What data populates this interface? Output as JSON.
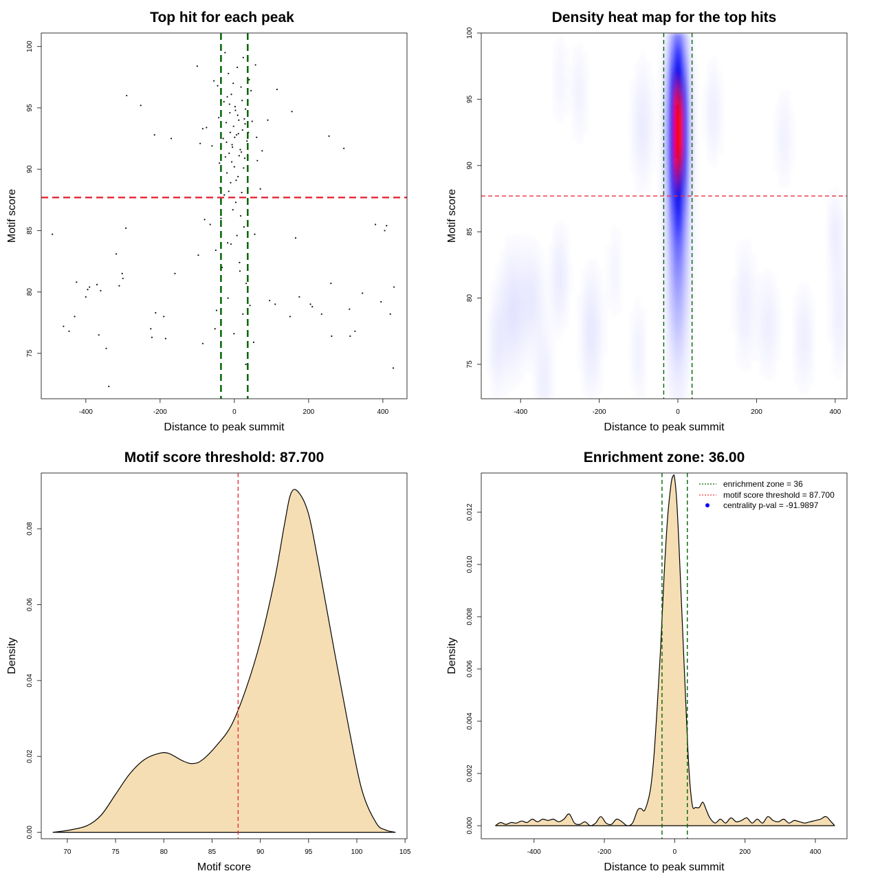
{
  "chart_data": [
    {
      "id": "scatter",
      "type": "scatter",
      "title": "Top hit for each peak",
      "xlabel": "Distance to peak summit",
      "ylabel": "Motif score",
      "xlim": [
        -520,
        465
      ],
      "ylim": [
        71.3,
        101.1
      ],
      "xticks": [
        -400,
        -200,
        0,
        200,
        400
      ],
      "xtick_labels": [
        "-400",
        "-200",
        "0",
        "200",
        "400"
      ],
      "yticks": [
        75,
        80,
        85,
        90,
        95,
        100
      ],
      "ytick_labels": [
        "75",
        "80",
        "85",
        "90",
        "95",
        "100"
      ],
      "vlines": [
        {
          "x": -36,
          "color": "#006400",
          "style": "dashed"
        },
        {
          "x": 36,
          "color": "#006400",
          "style": "dashed"
        }
      ],
      "hlines": [
        {
          "y": 87.7,
          "color": "#e8303c",
          "style": "dashed"
        }
      ],
      "points": [
        {
          "x": -490,
          "y": 84.7
        },
        {
          "x": -460,
          "y": 77.2
        },
        {
          "x": -445,
          "y": 76.8
        },
        {
          "x": -425,
          "y": 80.8
        },
        {
          "x": -430,
          "y": 78.0
        },
        {
          "x": -400,
          "y": 79.6
        },
        {
          "x": -395,
          "y": 80.2
        },
        {
          "x": -390,
          "y": 80.4
        },
        {
          "x": -370,
          "y": 80.6
        },
        {
          "x": -365,
          "y": 76.5
        },
        {
          "x": -360,
          "y": 80.1
        },
        {
          "x": -345,
          "y": 75.4
        },
        {
          "x": -338,
          "y": 72.3
        },
        {
          "x": -318,
          "y": 83.1
        },
        {
          "x": -310,
          "y": 80.5
        },
        {
          "x": -302,
          "y": 81.5
        },
        {
          "x": -300,
          "y": 81.1
        },
        {
          "x": -292,
          "y": 85.2
        },
        {
          "x": -290,
          "y": 96.0
        },
        {
          "x": -252,
          "y": 95.2
        },
        {
          "x": -225,
          "y": 77.0
        },
        {
          "x": -222,
          "y": 76.3
        },
        {
          "x": -215,
          "y": 92.8
        },
        {
          "x": -212,
          "y": 78.3
        },
        {
          "x": -190,
          "y": 78.0
        },
        {
          "x": -185,
          "y": 76.2
        },
        {
          "x": -170,
          "y": 92.5
        },
        {
          "x": -160,
          "y": 81.5
        },
        {
          "x": -100,
          "y": 98.4
        },
        {
          "x": -97,
          "y": 83.0
        },
        {
          "x": -92,
          "y": 92.1
        },
        {
          "x": -85,
          "y": 75.8
        },
        {
          "x": -85,
          "y": 93.3
        },
        {
          "x": -80,
          "y": 85.9
        },
        {
          "x": -75,
          "y": 93.4
        },
        {
          "x": -65,
          "y": 85.5
        },
        {
          "x": -60,
          "y": 91.9
        },
        {
          "x": -55,
          "y": 97.2
        },
        {
          "x": -52,
          "y": 77.0
        },
        {
          "x": -50,
          "y": 83.4
        },
        {
          "x": -48,
          "y": 78.5
        },
        {
          "x": -45,
          "y": 96.8
        },
        {
          "x": -42,
          "y": 94.2
        },
        {
          "x": -40,
          "y": 90.5
        },
        {
          "x": -38,
          "y": 88.5
        },
        {
          "x": -36,
          "y": 86.0
        },
        {
          "x": -33,
          "y": 82.0
        },
        {
          "x": -30,
          "y": 92.5
        },
        {
          "x": -28,
          "y": 95.5
        },
        {
          "x": -25,
          "y": 99.5
        },
        {
          "x": -22,
          "y": 93.8
        },
        {
          "x": -20,
          "y": 89.7
        },
        {
          "x": -18,
          "y": 84.0
        },
        {
          "x": -16,
          "y": 97.8
        },
        {
          "x": -14,
          "y": 91.3
        },
        {
          "x": -12,
          "y": 94.6
        },
        {
          "x": -10,
          "y": 88.9
        },
        {
          "x": -8,
          "y": 96.1
        },
        {
          "x": -6,
          "y": 92.0
        },
        {
          "x": -4,
          "y": 86.7
        },
        {
          "x": -2,
          "y": 93.5
        },
        {
          "x": 0,
          "y": 90.2
        },
        {
          "x": 2,
          "y": 95.1
        },
        {
          "x": 4,
          "y": 87.3
        },
        {
          "x": 6,
          "y": 92.8
        },
        {
          "x": 8,
          "y": 98.3
        },
        {
          "x": 10,
          "y": 89.4
        },
        {
          "x": 12,
          "y": 94.0
        },
        {
          "x": 14,
          "y": 82.4
        },
        {
          "x": 16,
          "y": 91.6
        },
        {
          "x": 18,
          "y": 96.7
        },
        {
          "x": 20,
          "y": 88.1
        },
        {
          "x": 22,
          "y": 93.2
        },
        {
          "x": 24,
          "y": 99.1
        },
        {
          "x": 26,
          "y": 85.3
        },
        {
          "x": 28,
          "y": 90.9
        },
        {
          "x": 30,
          "y": 94.9
        },
        {
          "x": 32,
          "y": 80.7
        },
        {
          "x": 34,
          "y": 92.3
        },
        {
          "x": -24,
          "y": 91.0
        },
        {
          "x": -19,
          "y": 95.9
        },
        {
          "x": -15,
          "y": 88.2
        },
        {
          "x": -11,
          "y": 93.0
        },
        {
          "x": -7,
          "y": 90.6
        },
        {
          "x": -3,
          "y": 97.0
        },
        {
          "x": 1,
          "y": 92.6
        },
        {
          "x": 5,
          "y": 89.1
        },
        {
          "x": 9,
          "y": 94.4
        },
        {
          "x": 13,
          "y": 91.1
        },
        {
          "x": 17,
          "y": 86.2
        },
        {
          "x": 21,
          "y": 95.6
        },
        {
          "x": 25,
          "y": 90.1
        },
        {
          "x": 29,
          "y": 93.7
        },
        {
          "x": -27,
          "y": 87.9
        },
        {
          "x": -21,
          "y": 92.2
        },
        {
          "x": -13,
          "y": 95.3
        },
        {
          "x": -5,
          "y": 91.8
        },
        {
          "x": 3,
          "y": 94.8
        },
        {
          "x": 11,
          "y": 92.9
        },
        {
          "x": 19,
          "y": 91.4
        },
        {
          "x": 27,
          "y": 94.1
        },
        {
          "x": -9,
          "y": 83.9
        },
        {
          "x": 7,
          "y": 84.6
        },
        {
          "x": 15,
          "y": 81.7
        },
        {
          "x": -17,
          "y": 79.5
        },
        {
          "x": 23,
          "y": 78.2
        },
        {
          "x": -1,
          "y": 76.6
        },
        {
          "x": 31,
          "y": 74.1
        },
        {
          "x": 38,
          "y": 93.0
        },
        {
          "x": 40,
          "y": 97.3
        },
        {
          "x": 42,
          "y": 78.9
        },
        {
          "x": 45,
          "y": 96.4
        },
        {
          "x": 48,
          "y": 93.9
        },
        {
          "x": 52,
          "y": 75.9
        },
        {
          "x": 55,
          "y": 84.7
        },
        {
          "x": 57,
          "y": 98.5
        },
        {
          "x": 60,
          "y": 92.6
        },
        {
          "x": 62,
          "y": 90.7
        },
        {
          "x": 70,
          "y": 88.4
        },
        {
          "x": 75,
          "y": 91.5
        },
        {
          "x": 90,
          "y": 94.0
        },
        {
          "x": 95,
          "y": 79.3
        },
        {
          "x": 110,
          "y": 79.0
        },
        {
          "x": 115,
          "y": 96.5
        },
        {
          "x": 150,
          "y": 78.0
        },
        {
          "x": 155,
          "y": 94.7
        },
        {
          "x": 165,
          "y": 84.4
        },
        {
          "x": 175,
          "y": 79.6
        },
        {
          "x": 205,
          "y": 79.0
        },
        {
          "x": 210,
          "y": 78.8
        },
        {
          "x": 235,
          "y": 78.2
        },
        {
          "x": 255,
          "y": 92.7
        },
        {
          "x": 260,
          "y": 80.7
        },
        {
          "x": 262,
          "y": 76.4
        },
        {
          "x": 295,
          "y": 91.7
        },
        {
          "x": 310,
          "y": 78.6
        },
        {
          "x": 312,
          "y": 76.4
        },
        {
          "x": 325,
          "y": 76.8
        },
        {
          "x": 345,
          "y": 79.9
        },
        {
          "x": 380,
          "y": 85.5
        },
        {
          "x": 395,
          "y": 79.2
        },
        {
          "x": 405,
          "y": 85.0
        },
        {
          "x": 410,
          "y": 85.4
        },
        {
          "x": 420,
          "y": 78.2
        },
        {
          "x": 428,
          "y": 73.8
        },
        {
          "x": 430,
          "y": 80.4
        }
      ]
    },
    {
      "id": "heatmap",
      "type": "heatmap",
      "title": "Density heat map for the top hits",
      "xlabel": "Distance to peak summit",
      "ylabel": "Motif score",
      "xlim": [
        -500,
        430
      ],
      "ylim": [
        72.4,
        100
      ],
      "xticks": [
        -400,
        -200,
        0,
        200,
        400
      ],
      "xtick_labels": [
        "-400",
        "-200",
        "0",
        "200",
        "400"
      ],
      "yticks": [
        75,
        80,
        85,
        90,
        95,
        100
      ],
      "ytick_labels": [
        "75",
        "80",
        "85",
        "90",
        "95",
        "100"
      ],
      "vlines": [
        {
          "x": -36,
          "color": "#006400",
          "style": "dashed"
        },
        {
          "x": 36,
          "color": "#006400",
          "style": "dashed"
        }
      ],
      "hlines": [
        {
          "y": 87.7,
          "color": "#e8303c",
          "style": "dashed"
        }
      ],
      "blobs": [
        {
          "x": 0,
          "y": 93.0,
          "sx": 16,
          "sy": 4.5,
          "weight": 1.0
        },
        {
          "x": 0,
          "y": 83.0,
          "sx": 18,
          "sy": 5.5,
          "weight": 0.25
        },
        {
          "x": -90,
          "y": 93.0,
          "sx": 18,
          "sy": 3,
          "weight": 0.06
        },
        {
          "x": -420,
          "y": 79.0,
          "sx": 22,
          "sy": 3,
          "weight": 0.08
        },
        {
          "x": -370,
          "y": 80.0,
          "sx": 20,
          "sy": 2.5,
          "weight": 0.06
        },
        {
          "x": -300,
          "y": 81.5,
          "sx": 15,
          "sy": 2.5,
          "weight": 0.06
        },
        {
          "x": -220,
          "y": 77.5,
          "sx": 18,
          "sy": 3,
          "weight": 0.07
        },
        {
          "x": -340,
          "y": 74.0,
          "sx": 15,
          "sy": 2.5,
          "weight": 0.05
        },
        {
          "x": -460,
          "y": 76.5,
          "sx": 15,
          "sy": 2.5,
          "weight": 0.05
        },
        {
          "x": -250,
          "y": 95.5,
          "sx": 14,
          "sy": 2.5,
          "weight": 0.04
        },
        {
          "x": -300,
          "y": 96.5,
          "sx": 14,
          "sy": 2.5,
          "weight": 0.03
        },
        {
          "x": 90,
          "y": 94.0,
          "sx": 14,
          "sy": 2.5,
          "weight": 0.05
        },
        {
          "x": 170,
          "y": 79.5,
          "sx": 18,
          "sy": 3,
          "weight": 0.05
        },
        {
          "x": 230,
          "y": 78.0,
          "sx": 18,
          "sy": 2.5,
          "weight": 0.05
        },
        {
          "x": 270,
          "y": 92.0,
          "sx": 15,
          "sy": 2.5,
          "weight": 0.04
        },
        {
          "x": 320,
          "y": 77.0,
          "sx": 18,
          "sy": 2.5,
          "weight": 0.05
        },
        {
          "x": 400,
          "y": 85.0,
          "sx": 14,
          "sy": 2,
          "weight": 0.05
        },
        {
          "x": 410,
          "y": 79.0,
          "sx": 15,
          "sy": 3,
          "weight": 0.05
        },
        {
          "x": -100,
          "y": 76.0,
          "sx": 14,
          "sy": 2.5,
          "weight": 0.04
        },
        {
          "x": -160,
          "y": 82.0,
          "sx": 14,
          "sy": 2.5,
          "weight": 0.03
        }
      ]
    },
    {
      "id": "density-score",
      "type": "area",
      "title": "Motif score threshold: 87.700",
      "xlabel": "Motif score",
      "ylabel": "Density",
      "xlim": [
        67.3,
        105.2
      ],
      "ylim": [
        -0.0017,
        0.0947
      ],
      "xticks": [
        70,
        75,
        80,
        85,
        90,
        95,
        100,
        105
      ],
      "xtick_labels": [
        "70",
        "75",
        "80",
        "85",
        "90",
        "95",
        "100",
        "105"
      ],
      "yticks": [
        0,
        0.02,
        0.04,
        0.06,
        0.08
      ],
      "ytick_labels": [
        "0.00",
        "0.02",
        "0.04",
        "0.06",
        "0.08"
      ],
      "fill": "#f5deb3",
      "vlines": [
        {
          "x": 87.7,
          "color": "#e8303c",
          "style": "dashed"
        }
      ],
      "x": [
        68.5,
        70,
        72,
        73.5,
        75,
        76.5,
        78,
        79.5,
        80.5,
        82,
        83,
        84,
        85.5,
        87,
        88.5,
        90,
        91.5,
        92.5,
        93.2,
        94,
        95,
        96,
        97.5,
        99,
        100.5,
        102,
        103,
        104
      ],
      "y": [
        0.0,
        0.0005,
        0.0017,
        0.0045,
        0.01,
        0.0155,
        0.0192,
        0.0208,
        0.0208,
        0.0188,
        0.0181,
        0.0191,
        0.023,
        0.0282,
        0.0377,
        0.0502,
        0.0668,
        0.0811,
        0.0895,
        0.0895,
        0.0839,
        0.0712,
        0.0502,
        0.0298,
        0.0114,
        0.0025,
        0.0006,
        0.0
      ]
    },
    {
      "id": "density-distance",
      "type": "area",
      "title": "Enrichment zone: 36.00",
      "xlabel": "Distance to peak summit",
      "ylabel": "Density",
      "xlim": [
        -550,
        490
      ],
      "ylim": [
        -0.0005,
        0.0135
      ],
      "xticks": [
        -400,
        -200,
        0,
        200,
        400
      ],
      "xtick_labels": [
        "-400",
        "-200",
        "0",
        "200",
        "400"
      ],
      "yticks": [
        0,
        0.002,
        0.004,
        0.006,
        0.008,
        0.01,
        0.012
      ],
      "ytick_labels": [
        "0.000",
        "0.002",
        "0.004",
        "0.006",
        "0.008",
        "0.010",
        "0.012"
      ],
      "fill": "#f5deb3",
      "vlines": [
        {
          "x": -36,
          "color": "#006400",
          "style": "dashed"
        },
        {
          "x": 36,
          "color": "#006400",
          "style": "dashed"
        }
      ],
      "x": [
        -510,
        -495,
        -480,
        -465,
        -450,
        -435,
        -420,
        -405,
        -390,
        -375,
        -360,
        -345,
        -330,
        -315,
        -300,
        -285,
        -270,
        -255,
        -240,
        -225,
        -210,
        -195,
        -180,
        -165,
        -150,
        -135,
        -120,
        -105,
        -95,
        -85,
        -70,
        -60,
        -50,
        -40,
        -30,
        -20,
        -10,
        -4,
        0,
        6,
        12,
        20,
        30,
        40,
        50,
        60,
        70,
        80,
        90,
        100,
        115,
        130,
        145,
        160,
        175,
        190,
        205,
        220,
        235,
        250,
        265,
        280,
        295,
        310,
        325,
        340,
        355,
        370,
        385,
        400,
        415,
        430,
        445,
        455
      ],
      "y": [
        0,
        0.00012,
        5e-05,
        0.00012,
        0.0001,
        0.00018,
        0.00012,
        0.00025,
        0.00015,
        0.00025,
        0.0002,
        0.00025,
        0.00015,
        0.00025,
        0.00045,
        0.0001,
        5e-05,
        0.00015,
        0.0,
        0.0001,
        0.00035,
        0.0001,
        5e-05,
        0.00025,
        0.00015,
        0.0,
        0.0001,
        0.0006,
        0.00065,
        0.0006,
        0.0013,
        0.0025,
        0.0045,
        0.0068,
        0.0096,
        0.0118,
        0.0131,
        0.0134,
        0.0133,
        0.0124,
        0.0108,
        0.0083,
        0.0052,
        0.0023,
        0.0008,
        0.0007,
        0.0007,
        0.0009,
        0.0006,
        0.0003,
        0.0001,
        0.00025,
        0.0001,
        0.0003,
        0.00015,
        0.0002,
        0.0003,
        0.0001,
        0.00025,
        0.0001,
        0.00035,
        0.0002,
        0.00015,
        0.00025,
        0.0001,
        0.0002,
        0.00015,
        0.0001,
        0.00015,
        0.0002,
        0.00025,
        0.00035,
        0.00015,
        0
      ]
    }
  ],
  "legend": {
    "entries": [
      {
        "label": "enrichment zone = 36",
        "color": "#006400",
        "symbol": "line"
      },
      {
        "label": "motif score threshold = 87.700",
        "color": "#e8303c",
        "symbol": "line"
      },
      {
        "label": "centrality p-val = -91.9897",
        "color": "#0000ff",
        "symbol": "dot"
      }
    ]
  }
}
